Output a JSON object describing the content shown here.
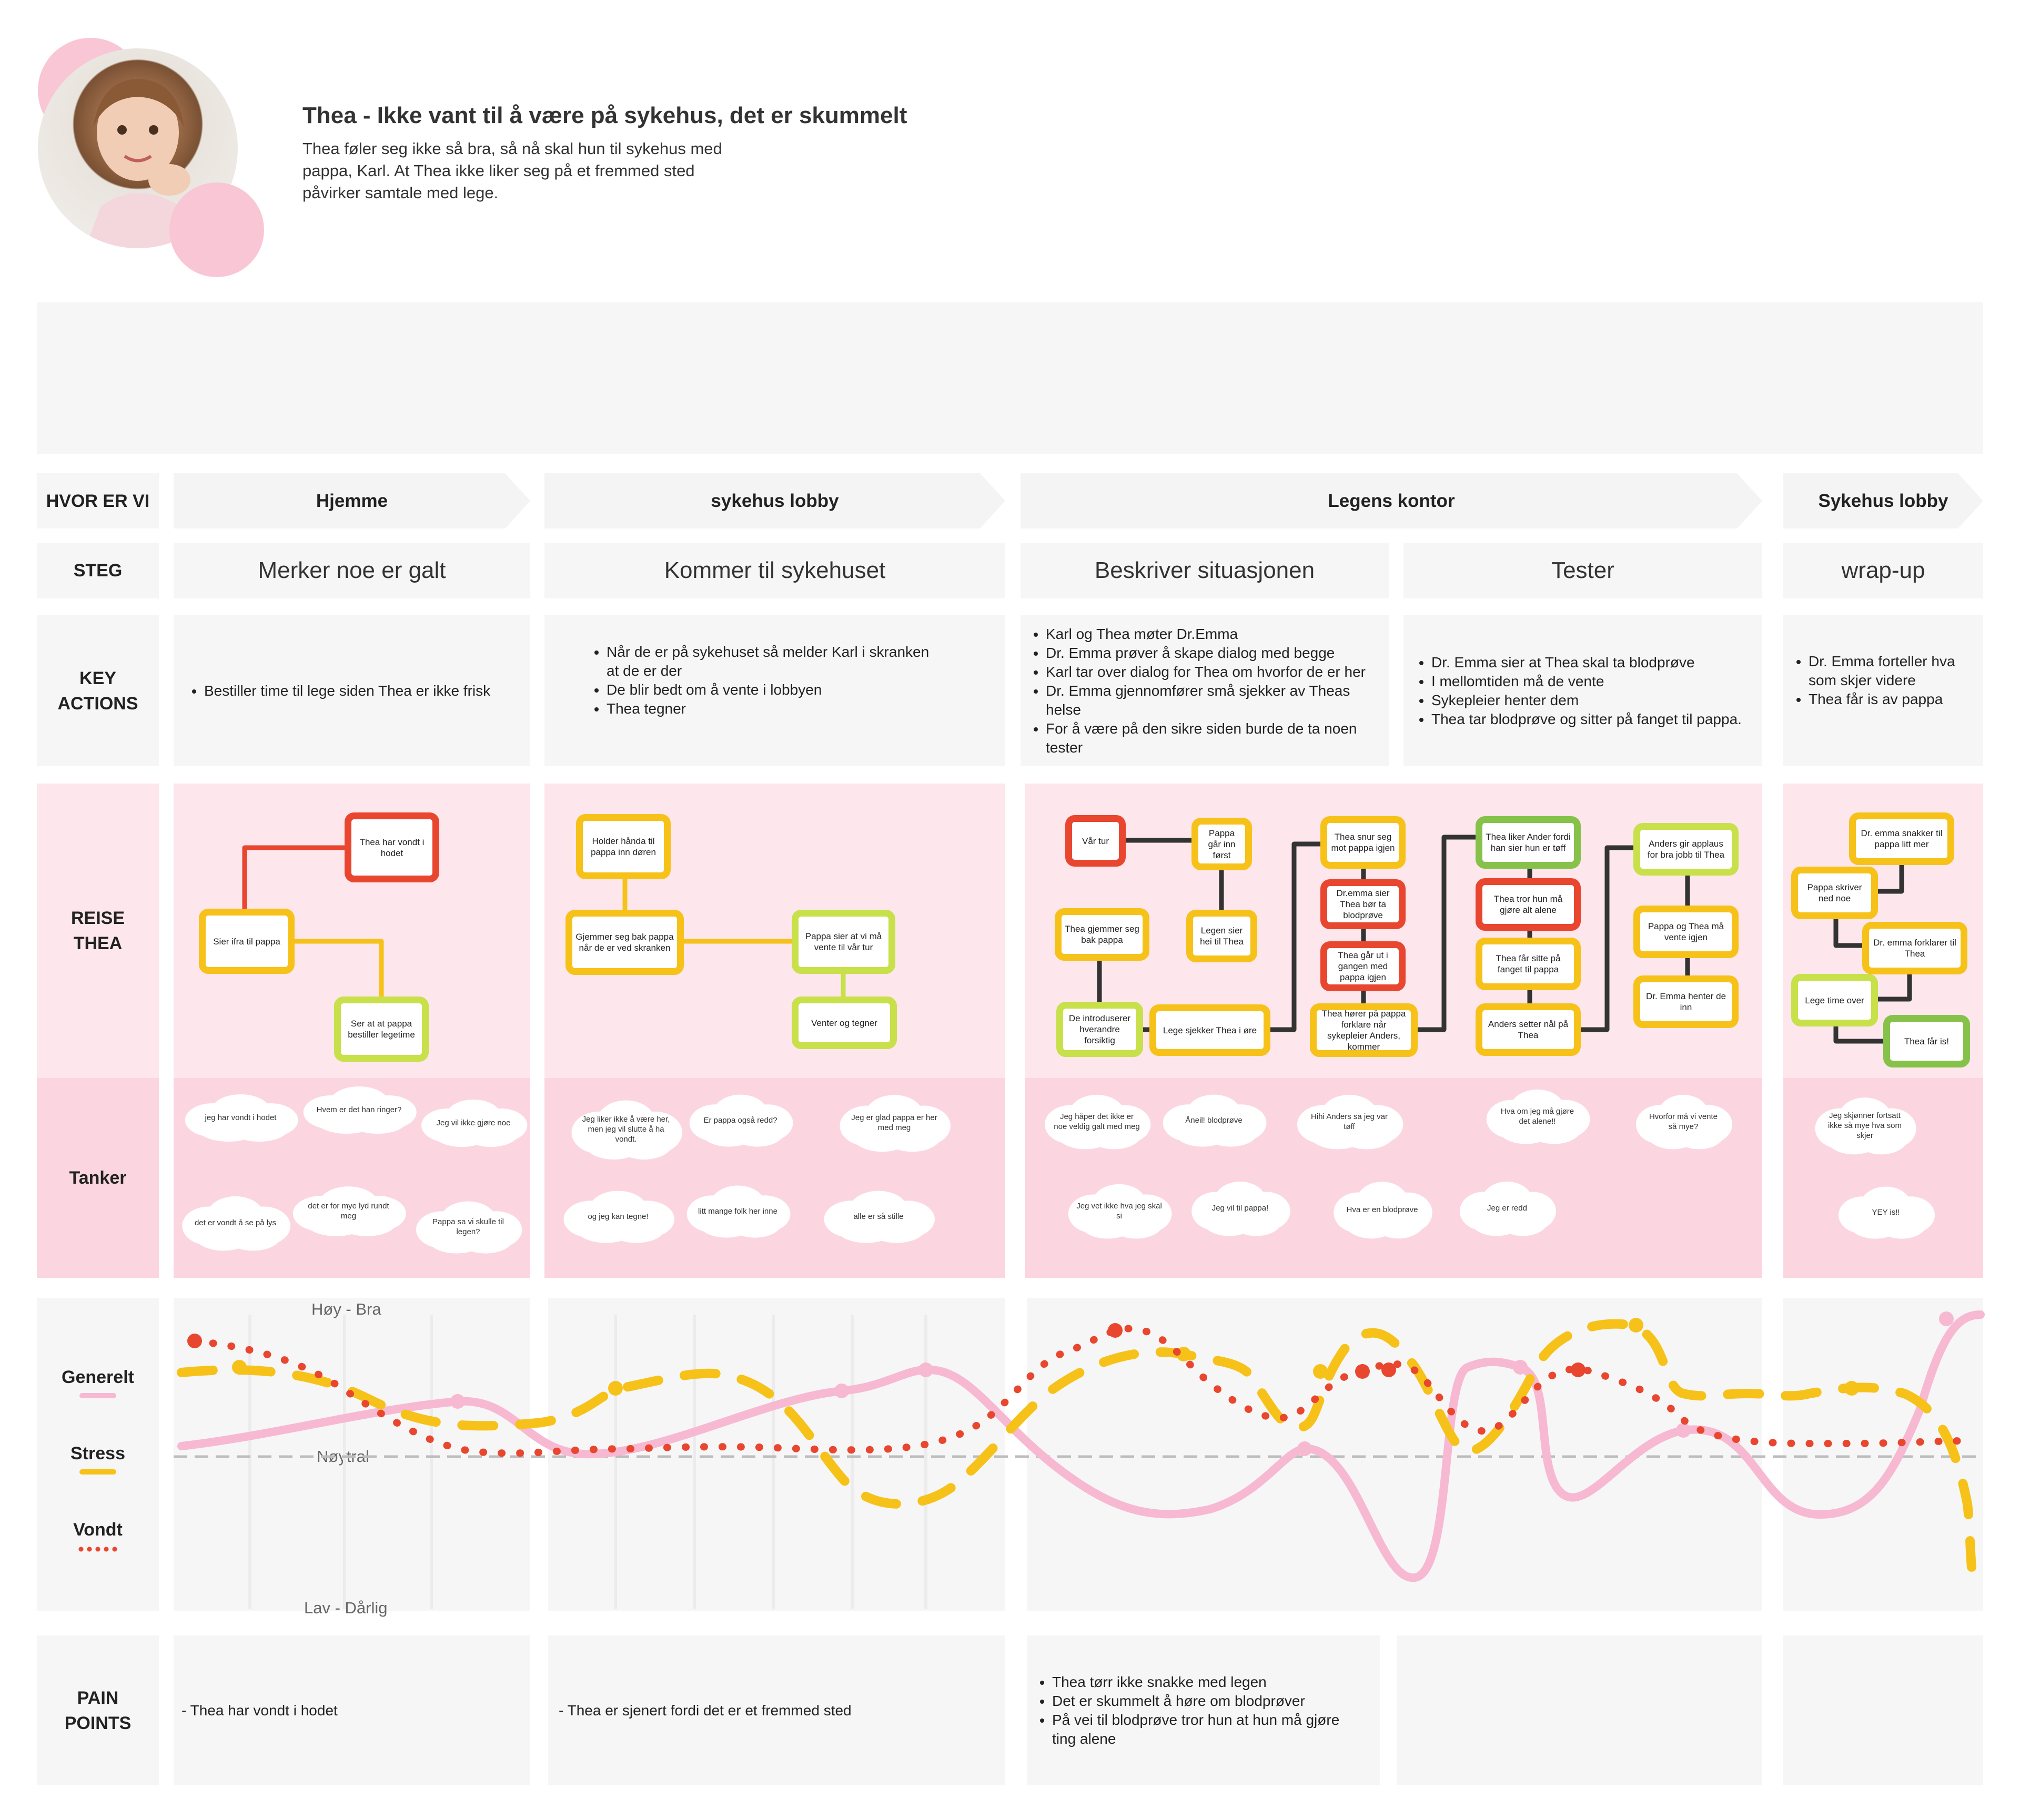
{
  "persona": {
    "title": "Thea - Ikke vant til å være på sykehus, det er skummelt",
    "description": "Thea føler seg ikke så bra, så nå skal hun til sykehus med pappa, Karl. At Thea ikke liker seg på et fremmed sted påvirker samtale med lege."
  },
  "rows": {
    "where": "HVOR ER VI",
    "step": "STEG",
    "key_actions": "KEY ACTIONS",
    "journey": "REISE THEA",
    "thoughts": "Tanker",
    "pain_points": "PAIN POINTS"
  },
  "phases": [
    "Hjemme",
    "sykehus lobby",
    "Legens kontor",
    "Sykehus lobby"
  ],
  "steps": [
    "Merker noe er galt",
    "Kommer til sykehuset",
    "Beskriver situasjonen",
    "Tester",
    "wrap-up"
  ],
  "key_actions": [
    [
      "Bestiller time til lege siden Thea er ikke frisk"
    ],
    [
      "Når de er på sykehuset så melder Karl i skranken at de er der",
      "De blir bedt om å vente i lobbyen",
      "Thea tegner"
    ],
    [
      "Karl og Thea møter Dr.Emma",
      "Dr. Emma prøver å skape dialog med begge",
      "Karl tar over dialog for Thea om hvorfor de er her",
      "Dr. Emma gjennomfører små sjekker av Theas helse",
      "For å være på den sikre siden burde de ta noen tester"
    ],
    [
      "Dr. Emma sier at Thea skal ta blodprøve",
      "I mellomtiden må de vente",
      "Sykepleier henter dem",
      "Thea tar blodprøve og sitter på fanget til pappa."
    ],
    [
      "Dr. Emma forteller hva som skjer videre",
      "Thea får is av pappa"
    ]
  ],
  "cards": {
    "c1": "Thea har vondt i hodet",
    "c2": "Sier ifra til pappa",
    "c3": "Ser at at pappa bestiller legetime",
    "c4": "Holder hånda til pappa inn døren",
    "c5": "Gjemmer seg bak pappa når de er ved skranken",
    "c6": "Pappa sier at vi må vente til vår tur",
    "c7": "Venter og tegner",
    "c8": "Vår tur",
    "c9": "Pappa går inn først",
    "c10": "Thea gjemmer seg bak pappa",
    "c11": "Legen sier hei til Thea",
    "c12": "De introduserer hverandre forsiktig",
    "c13": "Lege sjekker Thea i øre",
    "c14": "Thea snur seg mot pappa igjen",
    "c15": "Dr.emma sier Thea bør ta blodprøve",
    "c16": "Thea går ut i gangen med pappa igjen",
    "c17": "Thea hører på pappa forklare når sykepleier Anders, kommer",
    "c18": "Thea liker Ander fordi han sier hun er tøff",
    "c19": "Thea tror hun må gjøre alt alene",
    "c20": "Thea får sitte på fanget til pappa",
    "c21": "Anders setter nål på Thea",
    "c22": "Anders gir applaus for bra jobb til Thea",
    "c23": "Pappa og Thea må vente igjen",
    "c24": "Dr. Emma henter de inn",
    "c25": "Dr. emma snakker til pappa litt mer",
    "c26": "Pappa skriver ned noe",
    "c27": "Dr. emma forklarer til Thea",
    "c28": "Lege time over",
    "c29": "Thea får is!"
  },
  "thoughts": {
    "t1": "jeg har vondt i hodet",
    "t2": "Hvem er det han ringer?",
    "t3": "Jeg vil ikke gjøre noe",
    "t4": "det er vondt å se på lys",
    "t5": "det er for mye lyd rundt meg",
    "t6": "Pappa sa vi skulle til legen?",
    "t7": "Jeg liker ikke å være her, men jeg vil slutte å ha vondt.",
    "t8": "Er pappa også redd?",
    "t9": "Jeg er glad pappa er her med meg",
    "t10": "og jeg kan tegne!",
    "t11": "litt mange folk her inne",
    "t12": "alle er så stille",
    "t13": "Jeg håper det ikke er noe veldig galt med meg",
    "t14": "Åneil! blodprøve",
    "t15": "Hihi Anders sa jeg var tøff",
    "t16": "Hva om jeg må gjøre det alene!!",
    "t17": "Hvorfor må vi vente så mye?",
    "t18": "Jeg vet ikke hva jeg skal si",
    "t19": "Jeg vil til pappa!",
    "t20": "Hva er en blodprøve",
    "t21": "Jeg er redd",
    "t22": "Jeg skjønner fortsatt ikke så mye hva som skjer",
    "t23": "YEY is!!"
  },
  "emotion": {
    "legend_general": "Generelt",
    "legend_stress": "Stress",
    "legend_pain": "Vondt",
    "axis_high": "Høy - Bra",
    "axis_neutral": "Nøytral",
    "axis_low": "Lav - Dårlig",
    "colors": {
      "general": "#f7b8d2",
      "stress": "#f6c21a",
      "pain": "#e8462e"
    }
  },
  "pain_points": [
    [
      "- Thea har vondt i hodet"
    ],
    [
      "- Thea er sjenert fordi det er et fremmed sted"
    ],
    [
      "Thea tørr ikke snakke med legen",
      "Det er skummelt å høre om blodprøver",
      "På vei til blodprøve tror hun at hun må gjøre ting alene"
    ],
    [],
    []
  ]
}
